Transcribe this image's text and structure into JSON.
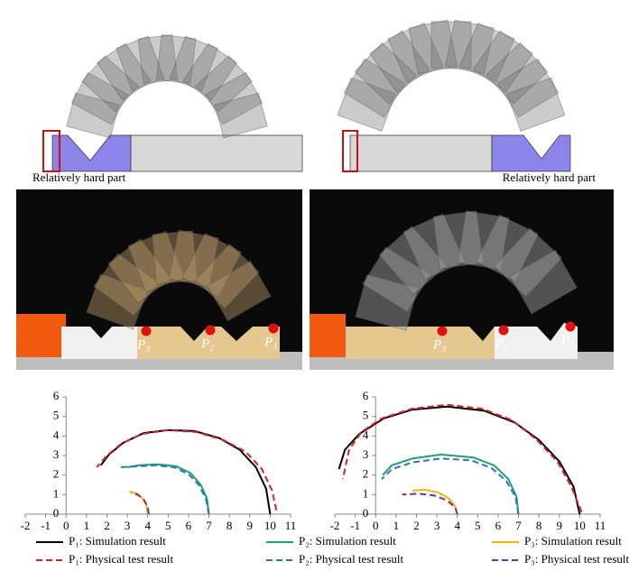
{
  "panels": [
    {
      "caption": "Relatively hard part",
      "photo_labels": [
        "P₃",
        "P₂",
        "P₁"
      ]
    },
    {
      "caption": "Relatively hard part",
      "photo_labels": [
        "P₃",
        "P₂",
        "P₁"
      ]
    }
  ],
  "chart_data": [
    {
      "type": "line",
      "xlim": [
        -2,
        11
      ],
      "ylim": [
        0,
        6
      ],
      "xticks": [
        -2,
        -1,
        0,
        1,
        2,
        3,
        4,
        5,
        6,
        7,
        8,
        9,
        10,
        11
      ],
      "yticks": [
        0,
        1,
        2,
        3,
        4,
        5,
        6
      ],
      "series": [
        {
          "color": "#000000",
          "dash": false,
          "x": [
            10,
            9.8,
            9.3,
            8.5,
            7.5,
            6.3,
            5,
            3.8,
            2.8,
            2.1,
            1.7
          ],
          "values": [
            0,
            1.3,
            2.4,
            3.3,
            3.9,
            4.25,
            4.3,
            4.15,
            3.65,
            3.05,
            2.5
          ]
        },
        {
          "color": "#e02020",
          "dash": true,
          "x": [
            10.3,
            10.1,
            9.6,
            8.8,
            7.7,
            6.4,
            5,
            3.7,
            2.7,
            2,
            1.5
          ],
          "values": [
            0.2,
            1.2,
            2.3,
            3.2,
            3.8,
            4.2,
            4.3,
            4.1,
            3.6,
            3,
            2.4
          ]
        },
        {
          "color": "#1aa36f",
          "dash": false,
          "x": [
            7,
            6.9,
            6.6,
            6.1,
            5.4,
            4.5,
            3.6,
            3
          ],
          "values": [
            0,
            0.8,
            1.5,
            2.1,
            2.45,
            2.55,
            2.5,
            2.4
          ]
        },
        {
          "color": "#2e75b6",
          "dash": true,
          "x": [
            7,
            6.85,
            6.5,
            6,
            5.3,
            4.4,
            3.5,
            2.6
          ],
          "values": [
            0,
            0.8,
            1.5,
            2.05,
            2.4,
            2.5,
            2.45,
            2.4
          ]
        },
        {
          "color": "#f5b800",
          "dash": false,
          "x": [
            4,
            3.95,
            3.8,
            3.5,
            3.1
          ],
          "values": [
            0,
            0.4,
            0.75,
            1.05,
            1.15
          ]
        },
        {
          "color": "#7030a0",
          "dash": true,
          "x": [
            4.05,
            4,
            3.8,
            3.5,
            3.2
          ],
          "values": [
            0,
            0.4,
            0.75,
            1,
            1.1
          ]
        }
      ]
    },
    {
      "type": "line",
      "xlim": [
        -2,
        11
      ],
      "ylim": [
        0,
        6
      ],
      "xticks": [
        -2,
        -1,
        0,
        1,
        2,
        3,
        4,
        5,
        6,
        7,
        8,
        9,
        10,
        11
      ],
      "yticks": [
        0,
        1,
        2,
        3,
        4,
        5,
        6
      ],
      "series": [
        {
          "color": "#000000",
          "dash": false,
          "x": [
            10,
            9.7,
            9,
            8,
            6.8,
            5.3,
            3.5,
            1.8,
            0.4,
            -0.8,
            -1.5,
            -1.8
          ],
          "values": [
            0,
            1.4,
            2.7,
            3.8,
            4.7,
            5.3,
            5.5,
            5.35,
            4.9,
            4.1,
            3.3,
            2.3
          ]
        },
        {
          "color": "#e02020",
          "dash": true,
          "x": [
            10.1,
            9.6,
            8.9,
            7.9,
            6.7,
            5.2,
            3.5,
            1.8,
            0.3,
            -0.7,
            -1.3,
            -1.6
          ],
          "values": [
            0.1,
            1.4,
            2.7,
            3.8,
            4.8,
            5.4,
            5.6,
            5.4,
            4.9,
            4.2,
            3.3,
            1.8
          ]
        },
        {
          "color": "#1aa36f",
          "dash": false,
          "x": [
            7,
            6.9,
            6.5,
            5.8,
            4.8,
            3.2,
            1.8,
            0.8,
            0.35
          ],
          "values": [
            0,
            0.9,
            1.8,
            2.5,
            2.9,
            3.05,
            2.85,
            2.5,
            2
          ]
        },
        {
          "color": "#2e75b6",
          "dash": true,
          "x": [
            7,
            6.85,
            6.4,
            5.7,
            4.7,
            3.2,
            1.8,
            0.8,
            0.3
          ],
          "values": [
            0,
            0.9,
            1.7,
            2.35,
            2.75,
            2.85,
            2.65,
            2.3,
            1.8
          ]
        },
        {
          "color": "#f5b800",
          "dash": false,
          "x": [
            4,
            3.9,
            3.6,
            3.1,
            2.4,
            1.8
          ],
          "values": [
            0,
            0.4,
            0.8,
            1.1,
            1.25,
            1.2
          ]
        },
        {
          "color": "#7030a0",
          "dash": true,
          "x": [
            4,
            3.9,
            3.5,
            2.9,
            2.1,
            1.3
          ],
          "values": [
            0,
            0.35,
            0.7,
            0.95,
            1.05,
            1
          ]
        }
      ]
    }
  ],
  "legend": [
    {
      "label": "P₁: Simulation result",
      "color": "#000000",
      "dash": false
    },
    {
      "label": "P₁: Physical test result",
      "color": "#e02020",
      "dash": true
    },
    {
      "label": "P₂: Simulation result",
      "color": "#1aa36f",
      "dash": false
    },
    {
      "label": "P₂: Physical test result",
      "color": "#2e75b6",
      "dash": true
    },
    {
      "label": "P₃: Simulation result",
      "color": "#f5b800",
      "dash": false
    },
    {
      "label": "P₃: Physical test result",
      "color": "#7030a0",
      "dash": true
    }
  ]
}
